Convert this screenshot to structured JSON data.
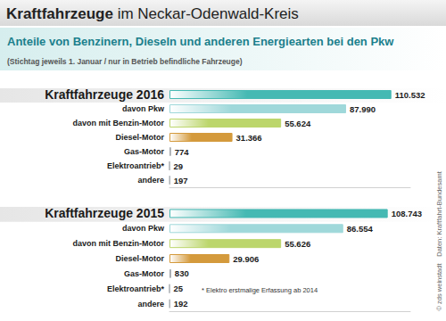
{
  "title": "Kraftfahrzeuge im Neckar-Odenwald-Kreis",
  "subtitle": "Anteile von Benzinern, Dieseln und anderen Energiearten bei den Pkw",
  "subtitle_note": "(Stichtag jeweils 1. Januar / nur in Betrieb befindliche Fahrzeuge)",
  "footnote": "* Elektro erstmalige Erfassung ab 2014",
  "source": "Daten: Kraftfahrt-Bundesamt",
  "credit": "© zds weinstadt",
  "chart_data": [
    {
      "type": "bar",
      "orientation": "horizontal",
      "categories": [
        "Kraftfahrzeuge 2016",
        "davon Pkw",
        "davon mit Benzin-Motor",
        "Diesel-Motor",
        "Gas-Motor",
        "Elektroantrieb*",
        "andere"
      ],
      "values": [
        110532,
        87990,
        55624,
        31366,
        774,
        29,
        197
      ],
      "value_labels": [
        "110.532",
        "87.990",
        "55.624",
        "31.366",
        "774",
        "29",
        "197"
      ],
      "colors": [
        "#45b9b3",
        "#9fd8da",
        "#bcd66c",
        "#d49a3c",
        "#a7acb1",
        "#a7acb1",
        "#a7acb1"
      ],
      "xlim": [
        0,
        120000
      ],
      "data_labels": true,
      "tick_labels": "y"
    },
    {
      "type": "bar",
      "orientation": "horizontal",
      "categories": [
        "Kraftfahrzeuge 2015",
        "davon Pkw",
        "davon mit Benzin-Motor",
        "Diesel-Motor",
        "Gas-Motor",
        "Elektroantrieb*",
        "andere"
      ],
      "values": [
        108743,
        86554,
        55626,
        29906,
        830,
        25,
        192
      ],
      "value_labels": [
        "108.743",
        "86.554",
        "55.626",
        "29.906",
        "830",
        "25",
        "192"
      ],
      "colors": [
        "#45b9b3",
        "#9fd8da",
        "#bcd66c",
        "#d49a3c",
        "#a7acb1",
        "#a7acb1",
        "#a7acb1"
      ],
      "xlim": [
        0,
        120000
      ],
      "data_labels": true,
      "tick_labels": "y"
    }
  ]
}
